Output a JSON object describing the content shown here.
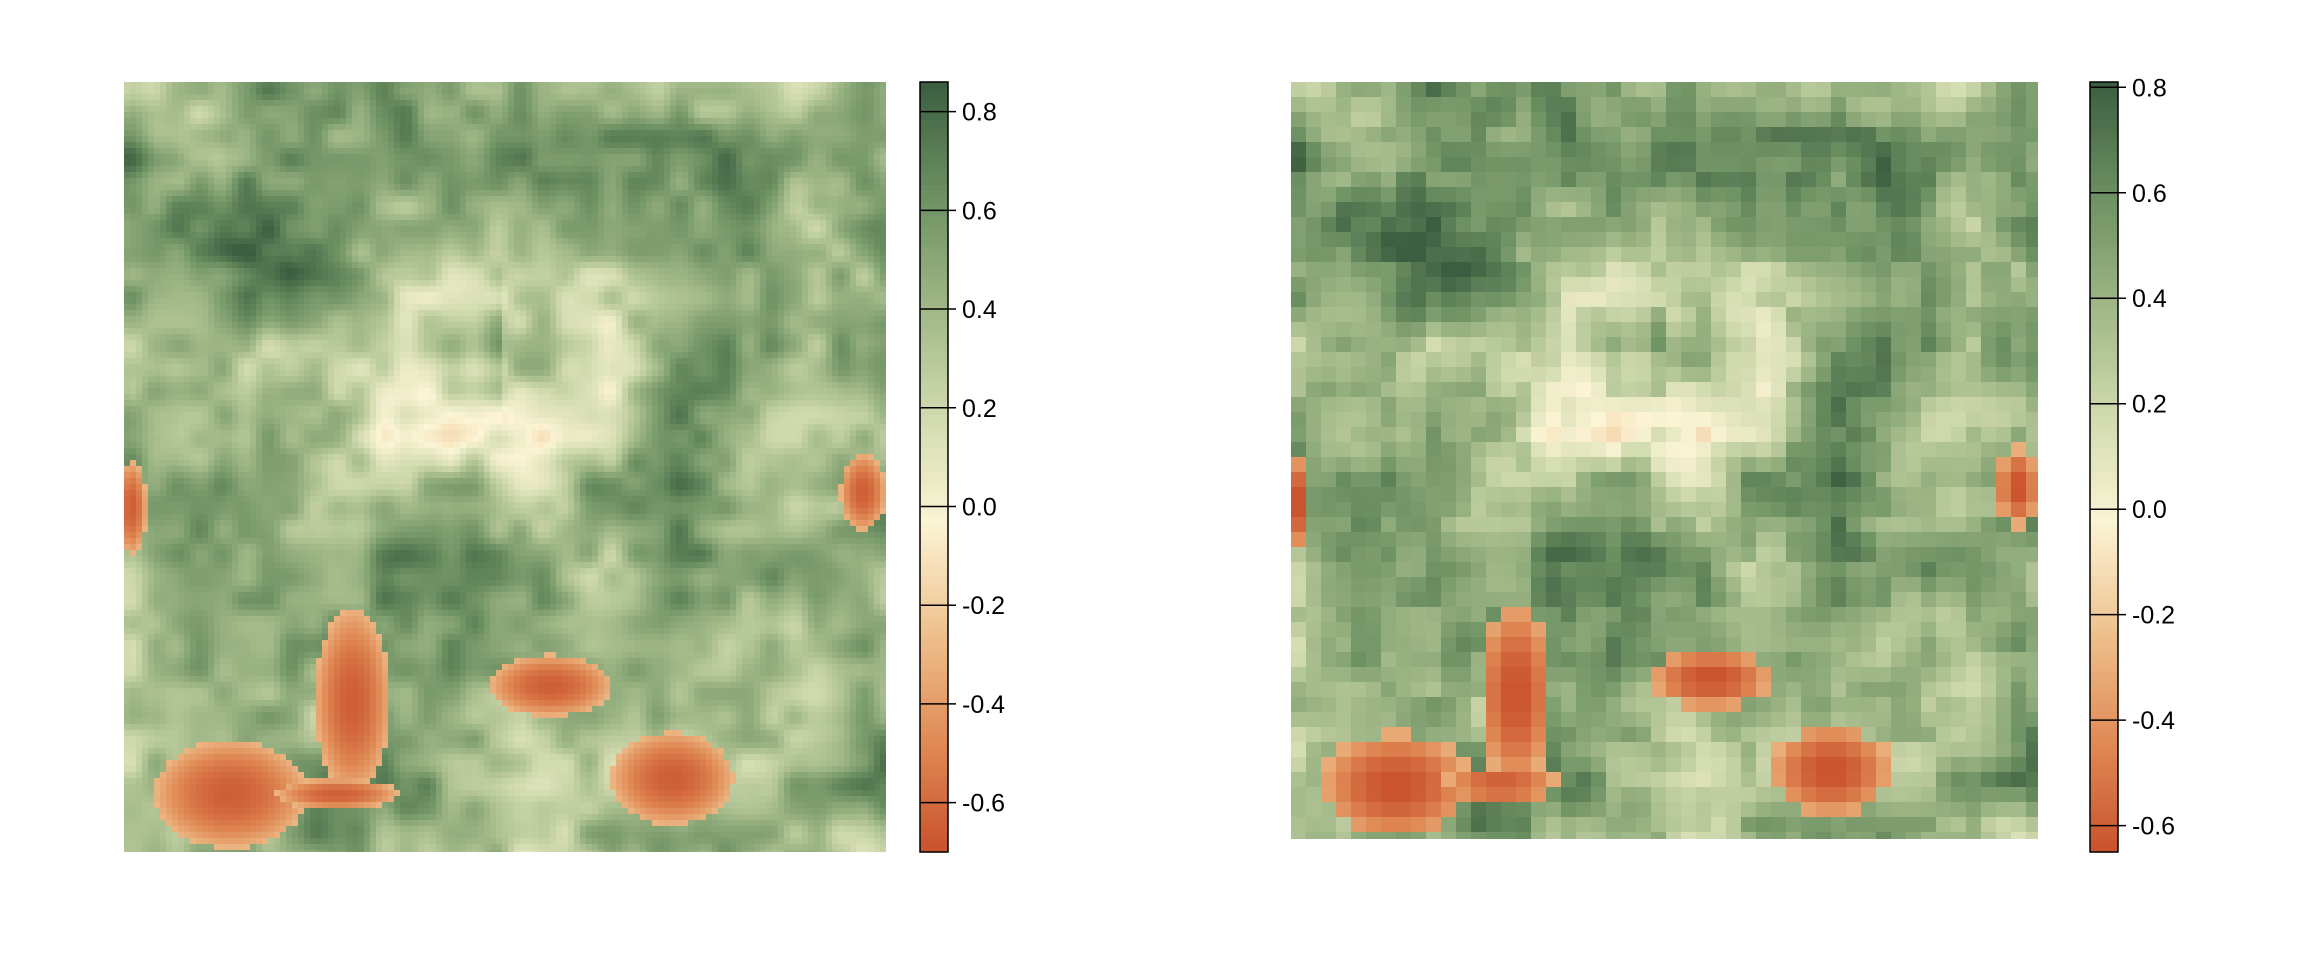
{
  "chart_data": [
    {
      "type": "heatmap",
      "title": "",
      "xlabel": "",
      "ylabel": "",
      "resolution": "fine",
      "legend": "right",
      "colorbar": {
        "range": [
          -0.7,
          0.86
        ],
        "ticks": [
          "0.8",
          "0.6",
          "0.4",
          "0.2",
          "0.0",
          "-0.2",
          "-0.4",
          "-0.6"
        ],
        "tick_values": [
          0.8,
          0.6,
          0.4,
          0.2,
          0.0,
          -0.2,
          -0.4,
          -0.6
        ]
      },
      "palette": [
        "#c9522c",
        "#e08a55",
        "#eec18e",
        "#fbf4d5",
        "#cfd9ad",
        "#9db585",
        "#6b8f61",
        "#3b5e40"
      ],
      "grid": false
    },
    {
      "type": "heatmap",
      "title": "",
      "xlabel": "",
      "ylabel": "",
      "resolution": "coarse",
      "legend": "right",
      "colorbar": {
        "range": [
          -0.65,
          0.81
        ],
        "ticks": [
          "0.8",
          "0.6",
          "0.4",
          "0.2",
          "0.0",
          "-0.2",
          "-0.4",
          "-0.6"
        ],
        "tick_values": [
          0.8,
          0.6,
          0.4,
          0.2,
          0.0,
          -0.2,
          -0.4,
          -0.6
        ]
      },
      "palette": [
        "#c9522c",
        "#e08a55",
        "#eec18e",
        "#fbf4d5",
        "#cfd9ad",
        "#9db585",
        "#6b8f61",
        "#3b5e40"
      ],
      "grid": false
    }
  ]
}
